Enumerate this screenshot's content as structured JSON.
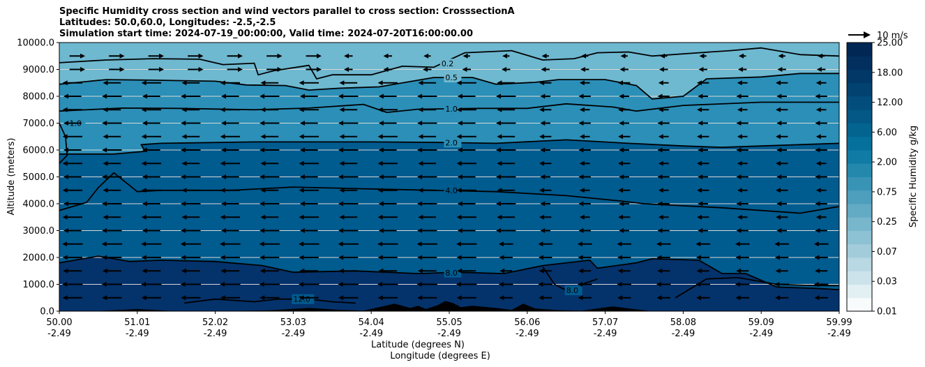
{
  "title": {
    "line1": "Specific Humidity cross section and wind vectors parallel to cross section: CrosssectionA",
    "line2": "Latitudes: 50.0,60.0, Longitudes: -2.5,-2.5",
    "line3": "Simulation start time: 2024-07-19_00:00:00, Valid time: 2024-07-20T16:00:00.00"
  },
  "colors": {
    "band_light": "#6eb8d0",
    "band_mid": "#2b8fb8",
    "band_dark": "#005b8f",
    "band_darkest": "#04326b",
    "terrain": "#000000",
    "grid": "#d8d8d8",
    "contour": "#000000"
  },
  "chart_data": {
    "type": "contourf",
    "xlabel": "Latitude (degrees N)",
    "xlabel2": "Longitude (degrees E)",
    "ylabel": "Altitude (meters)",
    "ylim": [
      0,
      10000
    ],
    "xlim": [
      0,
      10
    ],
    "x_ticks": [
      {
        "lat": "50.00",
        "lon": "-2.49"
      },
      {
        "lat": "51.01",
        "lon": "-2.49"
      },
      {
        "lat": "52.02",
        "lon": "-2.49"
      },
      {
        "lat": "53.03",
        "lon": "-2.49"
      },
      {
        "lat": "54.04",
        "lon": "-2.49"
      },
      {
        "lat": "55.05",
        "lon": "-2.49"
      },
      {
        "lat": "56.06",
        "lon": "-2.49"
      },
      {
        "lat": "57.07",
        "lon": "-2.49"
      },
      {
        "lat": "58.08",
        "lon": "-2.49"
      },
      {
        "lat": "59.09",
        "lon": "-2.49"
      },
      {
        "lat": "59.99",
        "lon": "-2.49"
      }
    ],
    "y_ticks": [
      {
        "v": 0,
        "label": "0.0"
      },
      {
        "v": 1000,
        "label": "1000.0"
      },
      {
        "v": 2000,
        "label": "2000.0"
      },
      {
        "v": 3000,
        "label": "3000.0"
      },
      {
        "v": 4000,
        "label": "4000.0"
      },
      {
        "v": 5000,
        "label": "5000.0"
      },
      {
        "v": 6000,
        "label": "6000.0"
      },
      {
        "v": 7000,
        "label": "7000.0"
      },
      {
        "v": 8000,
        "label": "8000.0"
      },
      {
        "v": 9000,
        "label": "9000.0"
      },
      {
        "v": 10000,
        "label": "10000.0"
      }
    ],
    "colorbar": {
      "label": "Specific Humidity g/kg",
      "tick_labels": [
        "0.01",
        "0.03",
        "0.07",
        "0.25",
        "0.75",
        "2.00",
        "6.00",
        "12.00",
        "18.00",
        "25.00"
      ],
      "colors": [
        "#f7fbfc",
        "#e2eff3",
        "#cde3eb",
        "#b8d8e3",
        "#a3ccdb",
        "#8dc1d4",
        "#78b6cc",
        "#63aac4",
        "#4e9ebd",
        "#3993b5",
        "#2488ad",
        "#107ca5",
        "#04709b",
        "#036490",
        "#035886",
        "#034d7c",
        "#024271",
        "#023867",
        "#022f5e",
        "#012754"
      ]
    },
    "quiver_key": {
      "label": "10 m/s",
      "magnitude": 10
    },
    "contours": [
      {
        "label": "0.2",
        "x": 4.9,
        "points": [
          [
            0,
            9250
          ],
          [
            0.6,
            9350
          ],
          [
            1.2,
            9400
          ],
          [
            1.8,
            9380
          ],
          [
            2.1,
            9180
          ],
          [
            2.5,
            9230
          ],
          [
            2.55,
            8800
          ],
          [
            2.75,
            8950
          ],
          [
            3.2,
            9150
          ],
          [
            3.3,
            8650
          ],
          [
            3.5,
            8800
          ],
          [
            4.0,
            8800
          ],
          [
            4.4,
            9120
          ],
          [
            4.8,
            9080
          ],
          [
            5.2,
            9620
          ],
          [
            5.8,
            9700
          ],
          [
            6.2,
            9350
          ],
          [
            6.6,
            9400
          ],
          [
            6.9,
            9620
          ],
          [
            7.3,
            9650
          ],
          [
            7.6,
            9500
          ],
          [
            8.2,
            9620
          ],
          [
            8.6,
            9700
          ],
          [
            9.0,
            9800
          ],
          [
            9.5,
            9550
          ],
          [
            10,
            9500
          ]
        ]
      },
      {
        "label": "0.5",
        "x": 4.95,
        "points": [
          [
            0,
            8450
          ],
          [
            0.6,
            8620
          ],
          [
            1.2,
            8600
          ],
          [
            2.0,
            8560
          ],
          [
            2.4,
            8420
          ],
          [
            2.9,
            8400
          ],
          [
            3.2,
            8230
          ],
          [
            3.6,
            8300
          ],
          [
            4.1,
            8350
          ],
          [
            4.8,
            8700
          ],
          [
            5.3,
            8700
          ],
          [
            5.6,
            8450
          ],
          [
            6.1,
            8520
          ],
          [
            6.4,
            8620
          ],
          [
            7.0,
            8620
          ],
          [
            7.4,
            8400
          ],
          [
            7.6,
            7900
          ],
          [
            8.0,
            8000
          ],
          [
            8.3,
            8650
          ],
          [
            9.0,
            8720
          ],
          [
            9.5,
            8850
          ],
          [
            10,
            8850
          ]
        ]
      },
      {
        "label": "1.0",
        "x": 4.95,
        "points": [
          [
            0,
            7450
          ],
          [
            0.8,
            7560
          ],
          [
            1.5,
            7550
          ],
          [
            2.5,
            7500
          ],
          [
            3.2,
            7560
          ],
          [
            3.9,
            7700
          ],
          [
            4.2,
            7400
          ],
          [
            4.6,
            7520
          ],
          [
            5.4,
            7550
          ],
          [
            6.0,
            7550
          ],
          [
            6.5,
            7720
          ],
          [
            7.1,
            7600
          ],
          [
            7.4,
            7450
          ],
          [
            8.0,
            7660
          ],
          [
            9.0,
            7780
          ],
          [
            10,
            7780
          ]
        ]
      },
      {
        "label": "2.0",
        "x": 4.95,
        "points": [
          [
            0,
            5850
          ],
          [
            0.7,
            5850
          ],
          [
            1.1,
            5950
          ],
          [
            1.05,
            6200
          ],
          [
            1.3,
            6250
          ],
          [
            2.5,
            6300
          ],
          [
            4.0,
            6300
          ],
          [
            4.9,
            6280
          ],
          [
            5.6,
            6250
          ],
          [
            6.5,
            6380
          ],
          [
            7.3,
            6250
          ],
          [
            8.0,
            6150
          ],
          [
            8.5,
            6100
          ],
          [
            9.0,
            6150
          ],
          [
            10,
            6250
          ]
        ]
      },
      {
        "label": "4.0",
        "x": 4.95,
        "points": [
          [
            0,
            3750
          ],
          [
            0.35,
            4050
          ],
          [
            0.5,
            4600
          ],
          [
            0.7,
            5150
          ],
          [
            0.85,
            4800
          ],
          [
            1.0,
            4450
          ],
          [
            1.3,
            4500
          ],
          [
            2.2,
            4500
          ],
          [
            3.0,
            4620
          ],
          [
            4.0,
            4550
          ],
          [
            4.8,
            4500
          ],
          [
            5.6,
            4450
          ],
          [
            6.5,
            4300
          ],
          [
            7.2,
            4100
          ],
          [
            7.5,
            4000
          ],
          [
            8.5,
            3850
          ],
          [
            9.5,
            3650
          ],
          [
            10,
            3900
          ]
        ]
      },
      {
        "label": "8.0",
        "x": 4.95,
        "points": [
          [
            0,
            1800
          ],
          [
            0.5,
            2050
          ],
          [
            0.9,
            1850
          ],
          [
            1.3,
            1900
          ],
          [
            2.0,
            1850
          ],
          [
            2.6,
            1700
          ],
          [
            3.0,
            1450
          ],
          [
            3.8,
            1500
          ],
          [
            4.6,
            1400
          ],
          [
            5.1,
            1450
          ],
          [
            5.7,
            1400
          ],
          [
            6.2,
            1700
          ],
          [
            6.8,
            1900
          ],
          [
            6.9,
            1600
          ],
          [
            7.4,
            1800
          ],
          [
            7.6,
            1950
          ],
          [
            8.2,
            1900
          ],
          [
            8.5,
            1400
          ],
          [
            8.8,
            1400
          ],
          [
            9.2,
            900
          ],
          [
            9.7,
            850
          ],
          [
            10,
            800
          ]
        ]
      },
      {
        "label": "8.0",
        "x": 6.5,
        "points": [
          [
            6.2,
            1650
          ],
          [
            6.35,
            1000
          ],
          [
            6.55,
            700
          ],
          [
            6.7,
            1000
          ],
          [
            6.9,
            1200
          ]
        ]
      },
      {
        "label": "12.0",
        "x": 3.0,
        "points": [
          [
            1.6,
            300
          ],
          [
            2.0,
            450
          ],
          [
            2.5,
            350
          ],
          [
            2.8,
            450
          ],
          [
            3.2,
            450
          ],
          [
            3.5,
            350
          ],
          [
            3.8,
            300
          ]
        ]
      },
      {
        "label": "",
        "x": 0,
        "points": [
          [
            7.9,
            500
          ],
          [
            8.3,
            1200
          ],
          [
            8.7,
            1250
          ],
          [
            9.2,
            1000
          ],
          [
            9.7,
            950
          ],
          [
            10,
            950
          ]
        ]
      },
      {
        "label": "1.0",
        "x": 0.13,
        "points": [
          [
            0,
            7000
          ],
          [
            0.08,
            6500
          ],
          [
            0.1,
            5800
          ],
          [
            0,
            5500
          ]
        ]
      }
    ],
    "terrain": [
      [
        0,
        0
      ],
      [
        0.4,
        0
      ],
      [
        0.8,
        50
      ],
      [
        1.0,
        80
      ],
      [
        1.3,
        30
      ],
      [
        1.5,
        0
      ],
      [
        2.0,
        0
      ],
      [
        2.7,
        30
      ],
      [
        3.2,
        120
      ],
      [
        3.6,
        50
      ],
      [
        3.9,
        20
      ],
      [
        4.1,
        150
      ],
      [
        4.3,
        280
      ],
      [
        4.5,
        120
      ],
      [
        4.6,
        200
      ],
      [
        4.7,
        80
      ],
      [
        4.85,
        220
      ],
      [
        4.95,
        380
      ],
      [
        5.05,
        300
      ],
      [
        5.15,
        150
      ],
      [
        5.3,
        200
      ],
      [
        5.6,
        120
      ],
      [
        5.8,
        50
      ],
      [
        5.95,
        280
      ],
      [
        6.1,
        100
      ],
      [
        6.4,
        40
      ],
      [
        6.7,
        20
      ],
      [
        6.9,
        100
      ],
      [
        7.1,
        180
      ],
      [
        7.3,
        100
      ],
      [
        7.6,
        0
      ],
      [
        10,
        0
      ]
    ]
  }
}
